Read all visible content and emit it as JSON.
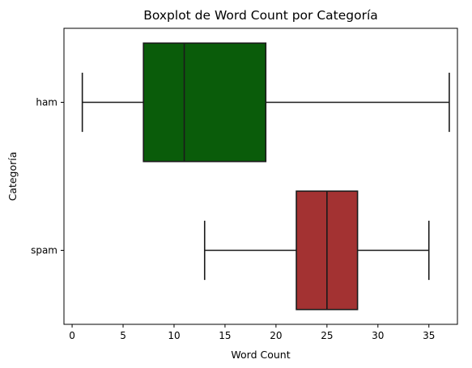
{
  "chart_data": {
    "type": "boxplot",
    "orientation": "horizontal",
    "title": "Boxplot de Word Count por Categoría",
    "xlabel": "Word Count",
    "ylabel": "Categoría",
    "xlim": [
      -0.8,
      37.8
    ],
    "xticks": [
      0,
      5,
      10,
      15,
      20,
      25,
      30,
      35
    ],
    "grid": false,
    "categories": [
      "ham",
      "spam"
    ],
    "series": [
      {
        "category": "ham",
        "whisker_low": 1,
        "q1": 7,
        "median": 11,
        "q3": 19,
        "whisker_high": 37,
        "color": "#0a5c0a"
      },
      {
        "category": "spam",
        "whisker_low": 13,
        "q1": 22,
        "median": 25,
        "q3": 28,
        "whisker_high": 35,
        "color": "#a33232"
      }
    ]
  }
}
